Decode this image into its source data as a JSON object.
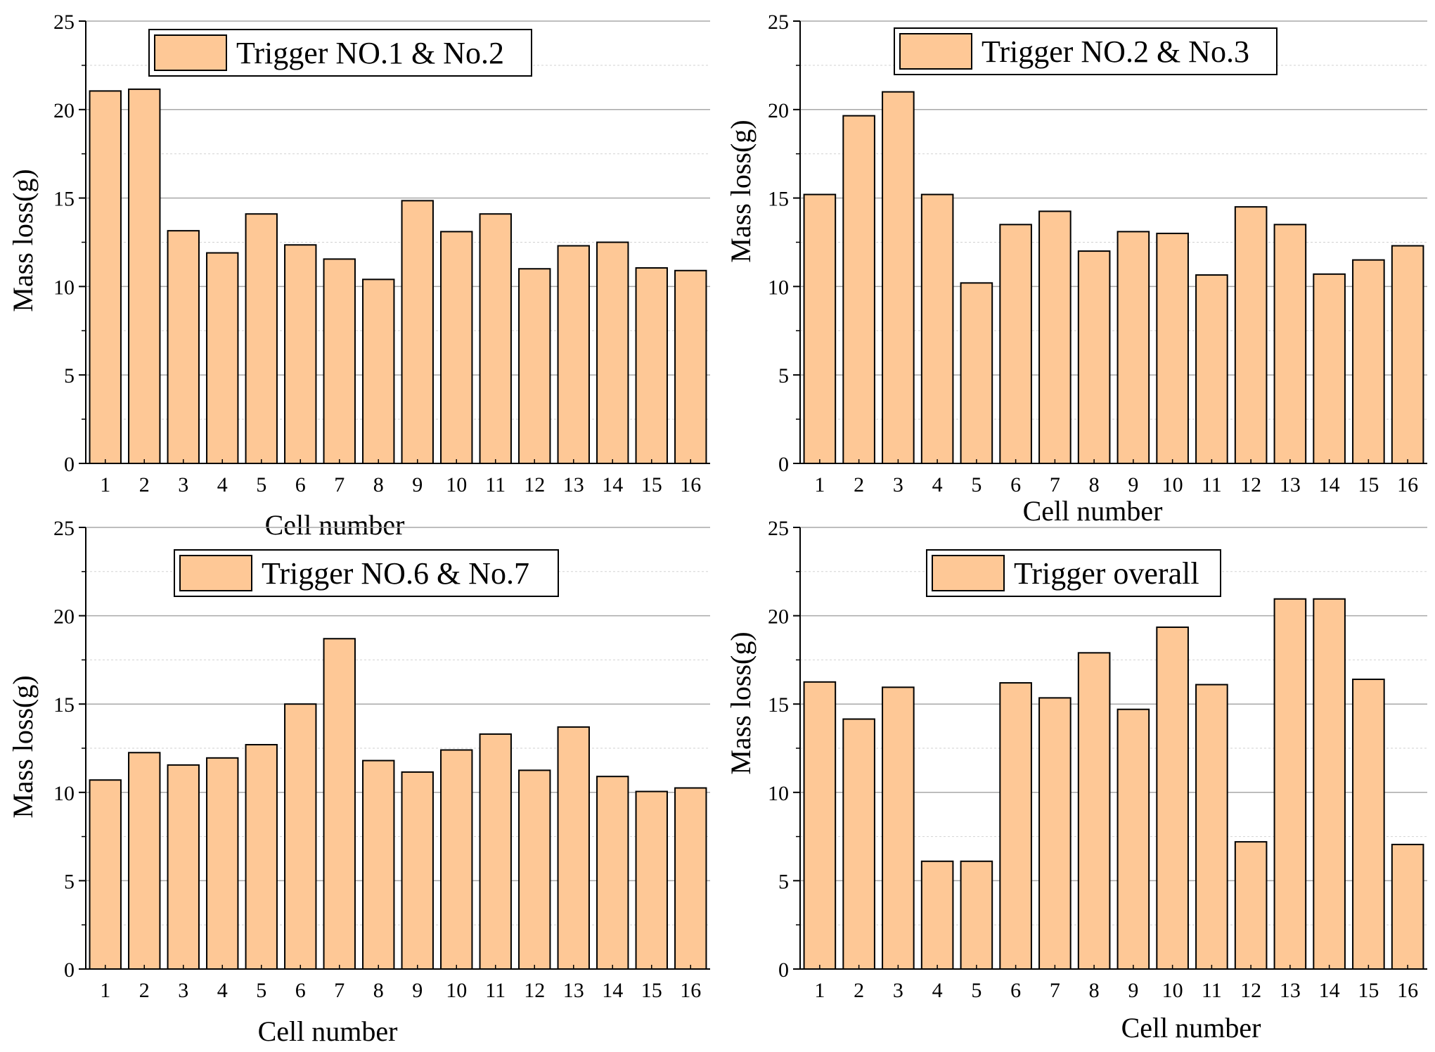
{
  "colors": {
    "bar_fill": "#FEC896",
    "bar_stroke": "#000000",
    "grid_major": "#a8a8a8",
    "grid_minor": "#d2d2d2",
    "axis": "#000000"
  },
  "chart_data": [
    {
      "type": "bar",
      "title": "",
      "legend": "Trigger NO.1 & No.2",
      "legend_position": "top-center",
      "xlabel": "Cell number",
      "ylabel": "Mass loss(g)",
      "ylim": [
        0,
        25
      ],
      "yticks": [
        0,
        5,
        10,
        15,
        20,
        25
      ],
      "grid": true,
      "categories": [
        "1",
        "2",
        "3",
        "4",
        "5",
        "6",
        "7",
        "8",
        "9",
        "10",
        "11",
        "12",
        "13",
        "14",
        "15",
        "16"
      ],
      "values": [
        21.05,
        21.15,
        13.15,
        11.9,
        14.1,
        12.35,
        11.55,
        10.4,
        14.85,
        13.1,
        14.1,
        11.0,
        12.3,
        12.5,
        11.05,
        10.9
      ]
    },
    {
      "type": "bar",
      "title": "",
      "legend": "Trigger NO.2 & No.3",
      "legend_position": "top-center",
      "xlabel": "Cell number",
      "ylabel": "Mass loss(g)",
      "ylim": [
        0,
        25
      ],
      "yticks": [
        0,
        5,
        10,
        15,
        20,
        25
      ],
      "grid": true,
      "categories": [
        "1",
        "2",
        "3",
        "4",
        "5",
        "6",
        "7",
        "8",
        "9",
        "10",
        "11",
        "12",
        "13",
        "14",
        "15",
        "16"
      ],
      "values": [
        15.2,
        19.65,
        21.0,
        15.2,
        10.2,
        13.5,
        14.25,
        12.0,
        13.1,
        13.0,
        10.65,
        14.5,
        13.5,
        10.7,
        11.5,
        12.3
      ]
    },
    {
      "type": "bar",
      "title": "",
      "legend": "Trigger NO.6 & No.7",
      "legend_position": "top-center",
      "xlabel": "Cell number",
      "ylabel": "Mass loss(g)",
      "ylim": [
        0,
        25
      ],
      "yticks": [
        0,
        5,
        10,
        15,
        20,
        25
      ],
      "grid": true,
      "categories": [
        "1",
        "2",
        "3",
        "4",
        "5",
        "6",
        "7",
        "8",
        "9",
        "10",
        "11",
        "12",
        "13",
        "14",
        "15",
        "16"
      ],
      "values": [
        10.7,
        12.25,
        11.55,
        11.95,
        12.7,
        15.0,
        18.7,
        11.8,
        11.15,
        12.4,
        13.3,
        11.25,
        13.7,
        10.9,
        10.05,
        10.25
      ]
    },
    {
      "type": "bar",
      "title": "",
      "legend": "Trigger overall",
      "legend_position": "top-center",
      "xlabel": "Cell number",
      "ylabel": "Mass loss(g)",
      "ylim": [
        0,
        25
      ],
      "yticks": [
        0,
        5,
        10,
        15,
        20,
        25
      ],
      "grid": true,
      "categories": [
        "1",
        "2",
        "3",
        "4",
        "5",
        "6",
        "7",
        "8",
        "9",
        "10",
        "11",
        "12",
        "13",
        "14",
        "15",
        "16"
      ],
      "values": [
        16.25,
        14.15,
        15.95,
        6.1,
        6.1,
        16.2,
        15.35,
        17.9,
        14.7,
        19.35,
        16.1,
        7.2,
        20.95,
        20.95,
        16.4,
        7.05
      ]
    }
  ]
}
